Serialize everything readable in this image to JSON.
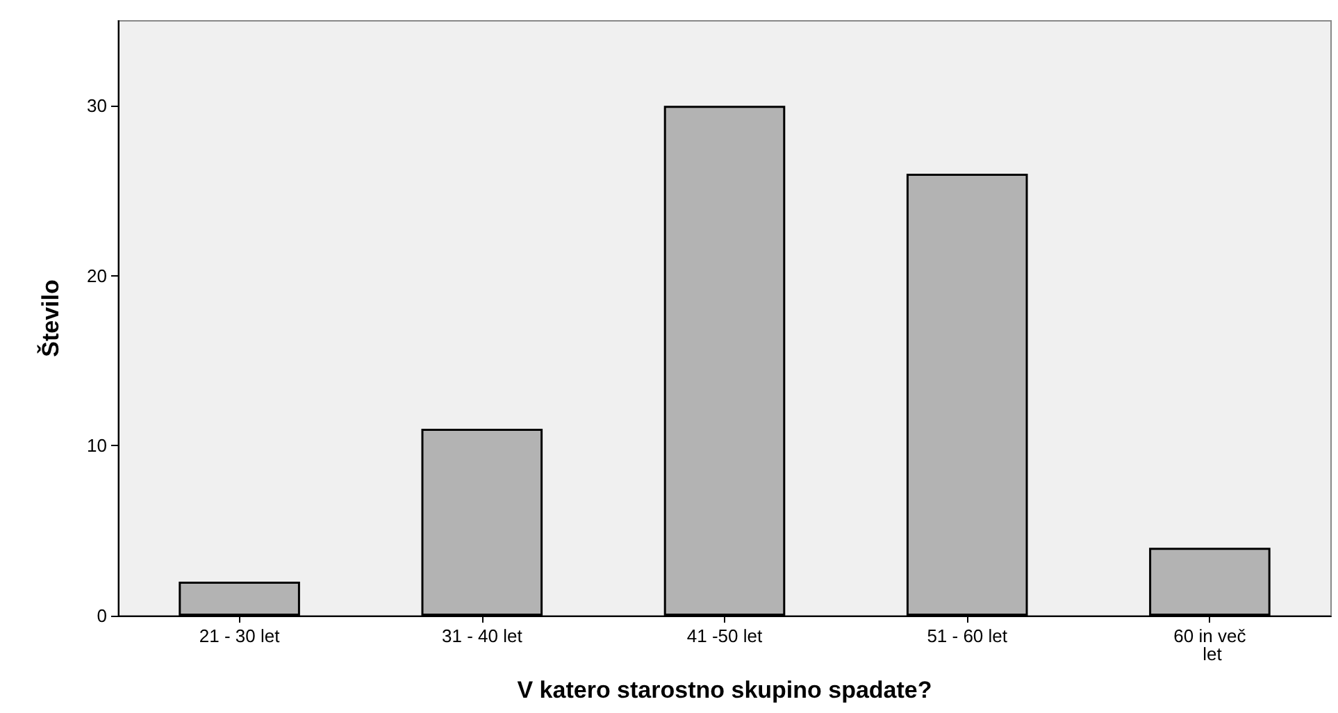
{
  "chart_data": {
    "type": "bar",
    "xlabel": "V katero starostno skupino spadate?",
    "ylabel": "Število",
    "categories": [
      "21 - 30 let",
      "31 - 40 let",
      "41 -50 let",
      "51 - 60 let",
      "60 in več let"
    ],
    "values": [
      2,
      11,
      30,
      26,
      4
    ],
    "color": "#b3b3b3",
    "ylim": [
      0,
      35
    ],
    "yticks": [
      0,
      10,
      20,
      30
    ],
    "grid": false
  }
}
